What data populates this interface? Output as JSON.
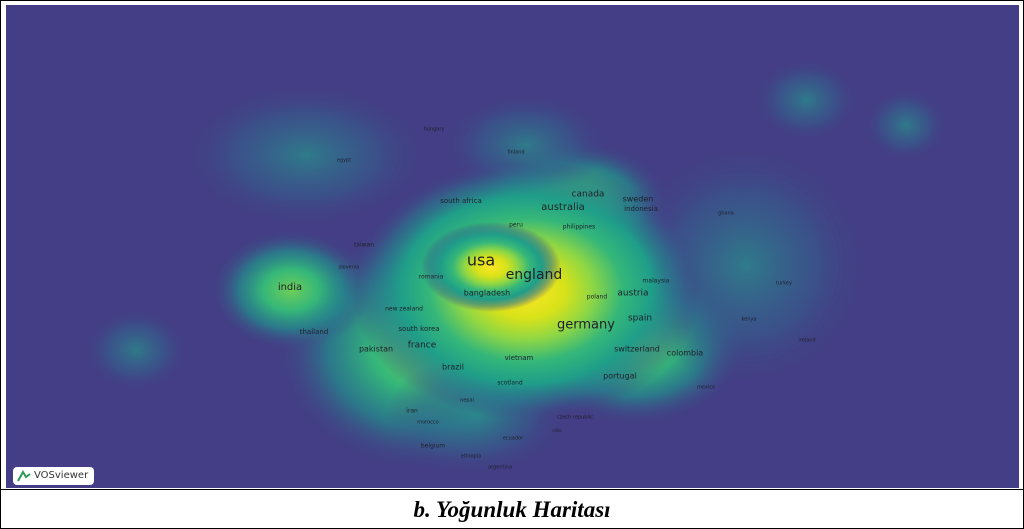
{
  "map": {
    "labels": [
      "usa",
      "england",
      "germany",
      "australia",
      "canada",
      "sweden",
      "indonesia",
      "austria",
      "spain",
      "bangladesh",
      "poland",
      "malaysia",
      "switzerland",
      "colombia",
      "portugal",
      "france",
      "pakistan",
      "brazil",
      "vietnam",
      "south korea",
      "new zealand",
      "india",
      "thailand",
      "romania",
      "slovenia",
      "taiwan",
      "south africa",
      "peru",
      "philippines",
      "ghana",
      "finland",
      "hungary",
      "egypt",
      "scotland",
      "nepal",
      "iran",
      "morocco",
      "belgium",
      "ecuador",
      "ethiopia",
      "argentina",
      "czech republic",
      "turkey",
      "kenya",
      "ireland",
      "mexico",
      "chile"
    ]
  },
  "logo": "VOSviewer",
  "caption": "b. Yoğunluk Haritası"
}
